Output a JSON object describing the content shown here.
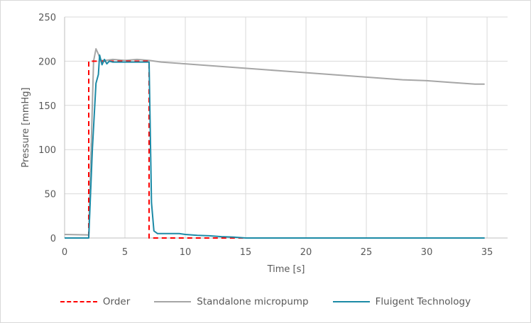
{
  "chart_data": {
    "type": "line",
    "title": "",
    "xlabel": "Time [s]",
    "ylabel": "Pressure [mmHg]",
    "xlim": [
      0,
      36.7
    ],
    "ylim": [
      0,
      250
    ],
    "x_ticks": [
      0,
      5,
      10,
      15,
      20,
      25,
      30,
      35
    ],
    "y_ticks": [
      0,
      50,
      100,
      150,
      200,
      250
    ],
    "grid": true,
    "legend_position": "bottom",
    "series": [
      {
        "name": "Order",
        "color": "#ff0000",
        "style": "dashed",
        "points": [
          [
            0,
            0
          ],
          [
            2.0,
            0
          ],
          [
            2.0,
            200
          ],
          [
            7.0,
            200
          ],
          [
            7.0,
            0
          ],
          [
            15,
            0
          ]
        ]
      },
      {
        "name": "Standalone micropump",
        "color": "#a6a6a6",
        "style": "solid",
        "points": [
          [
            0,
            4
          ],
          [
            1.9,
            3.5
          ],
          [
            2.0,
            3
          ],
          [
            2.4,
            200
          ],
          [
            2.6,
            214
          ],
          [
            2.8,
            208
          ],
          [
            3.0,
            201
          ],
          [
            3.4,
            201
          ],
          [
            4,
            202
          ],
          [
            5,
            201
          ],
          [
            6,
            202
          ],
          [
            7,
            201
          ],
          [
            8,
            199
          ],
          [
            10,
            197
          ],
          [
            12,
            195
          ],
          [
            15,
            192
          ],
          [
            18,
            189
          ],
          [
            20,
            187
          ],
          [
            22,
            185
          ],
          [
            25,
            182
          ],
          [
            28,
            179
          ],
          [
            30,
            178
          ],
          [
            32,
            176
          ],
          [
            34,
            174
          ],
          [
            34.8,
            174
          ]
        ]
      },
      {
        "name": "Fluigent Technology",
        "color": "#1c8aa6",
        "style": "solid",
        "points": [
          [
            0,
            0
          ],
          [
            1.9,
            0
          ],
          [
            2.0,
            0
          ],
          [
            2.3,
            100
          ],
          [
            2.6,
            175
          ],
          [
            2.8,
            185
          ],
          [
            2.9,
            207
          ],
          [
            3.1,
            196
          ],
          [
            3.3,
            202
          ],
          [
            3.5,
            197
          ],
          [
            3.7,
            200
          ],
          [
            4,
            199
          ],
          [
            5,
            199
          ],
          [
            6,
            199
          ],
          [
            7.0,
            199
          ],
          [
            7.1,
            120
          ],
          [
            7.2,
            40
          ],
          [
            7.4,
            8
          ],
          [
            7.7,
            5
          ],
          [
            9.5,
            5
          ],
          [
            10,
            4
          ],
          [
            11,
            3
          ],
          [
            12,
            2.5
          ],
          [
            13,
            1.5
          ],
          [
            14,
            1
          ],
          [
            15,
            0
          ],
          [
            20,
            0
          ],
          [
            25,
            0
          ],
          [
            30,
            0
          ],
          [
            34.8,
            0
          ]
        ]
      }
    ]
  },
  "axes": {
    "x_title": "Time [s]",
    "y_title": "Pressure [mmHg]",
    "x_tick_labels": [
      "0",
      "5",
      "10",
      "15",
      "20",
      "25",
      "30",
      "35"
    ],
    "y_tick_labels": [
      "0",
      "50",
      "100",
      "150",
      "200",
      "250"
    ]
  },
  "legend": {
    "items": [
      {
        "label": "Order",
        "color": "#ff0000",
        "style": "dashed"
      },
      {
        "label": "Standalone micropump",
        "color": "#a6a6a6",
        "style": "solid"
      },
      {
        "label": "Fluigent Technology",
        "color": "#1c8aa6",
        "style": "solid"
      }
    ]
  },
  "colors": {
    "grid": "#d9d9d9",
    "axis": "#bfbfbf",
    "text": "#595959",
    "border": "#d9d9d9"
  }
}
